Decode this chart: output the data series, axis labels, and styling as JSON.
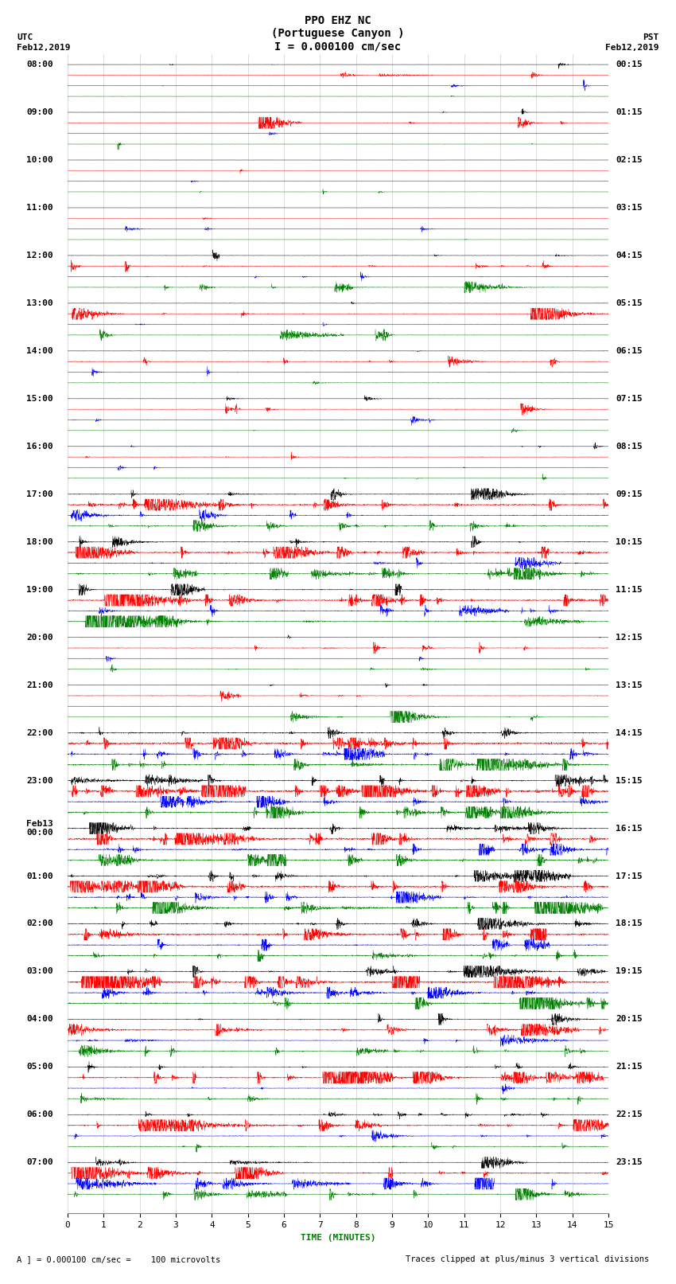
{
  "title_line1": "PPO EHZ NC",
  "title_line2": "(Portuguese Canyon )",
  "title_line3": "I = 0.000100 cm/sec",
  "utc_label": "UTC",
  "utc_date": "Feb12,2019",
  "pst_label": "PST",
  "pst_date": "Feb12,2019",
  "xlabel": "TIME (MINUTES)",
  "footer_left": "A ] = 0.000100 cm/sec =    100 microvolts",
  "footer_right": "Traces clipped at plus/minus 3 vertical divisions",
  "left_times": [
    "08:00",
    "09:00",
    "10:00",
    "11:00",
    "12:00",
    "13:00",
    "14:00",
    "15:00",
    "16:00",
    "17:00",
    "18:00",
    "19:00",
    "20:00",
    "21:00",
    "22:00",
    "23:00",
    "Feb13\n00:00",
    "01:00",
    "02:00",
    "03:00",
    "04:00",
    "05:00",
    "06:00",
    "07:00"
  ],
  "right_times": [
    "00:15",
    "01:15",
    "02:15",
    "03:15",
    "04:15",
    "05:15",
    "06:15",
    "07:15",
    "08:15",
    "09:15",
    "10:15",
    "11:15",
    "12:15",
    "13:15",
    "14:15",
    "15:15",
    "16:15",
    "17:15",
    "18:15",
    "19:15",
    "20:15",
    "21:15",
    "22:15",
    "23:15"
  ],
  "n_rows": 24,
  "n_traces_per_row": 4,
  "trace_colors": [
    "black",
    "red",
    "blue",
    "green"
  ],
  "x_ticks": [
    0,
    1,
    2,
    3,
    4,
    5,
    6,
    7,
    8,
    9,
    10,
    11,
    12,
    13,
    14,
    15
  ],
  "minutes_per_row": 15,
  "background_color": "white",
  "title_fontsize": 10,
  "label_fontsize": 8,
  "tick_fontsize": 8,
  "footer_fontsize": 7.5,
  "seed": 42
}
